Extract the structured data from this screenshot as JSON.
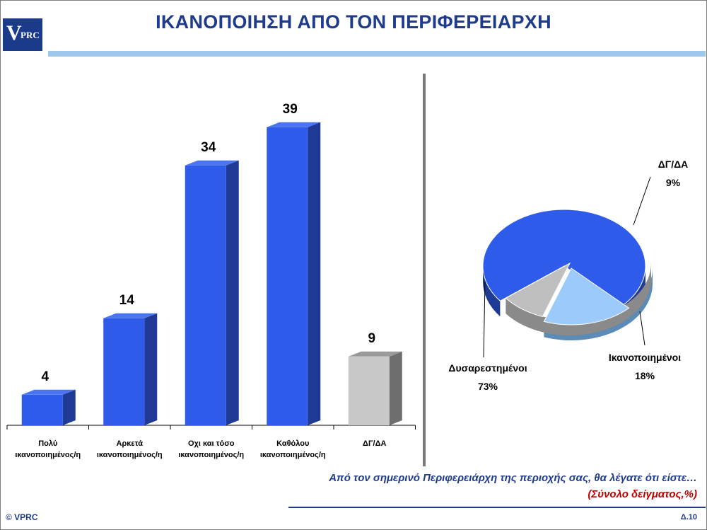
{
  "header": {
    "logo_text_v": "V",
    "logo_text_rest": "PRC",
    "title": "ΙΚΑΝΟΠΟΙΗΣΗ ΑΠΟ ΤΟΝ ΠΕΡΙΦΕΡΕΙΑΡΧΗ"
  },
  "colors": {
    "bar_blue": "#2f5bea",
    "bar_blue_side": "#1f3a94",
    "bar_blue_top": "#4a74f2",
    "bar_gray": "#c8c8c8",
    "bar_gray_side": "#6e6e6e",
    "pie_gray": "#bfbfbf",
    "pie_light_blue": "#9ccbfb",
    "title_blue": "#1f3b8c",
    "accent_red": "#c00000"
  },
  "chart_data": [
    {
      "type": "bar",
      "categories": [
        [
          "Πολύ",
          "ικανοποιημένος/η"
        ],
        [
          "Αρκετά",
          "ικανοποιημένος/η"
        ],
        [
          "Οχι και τόσο",
          "ικανοποιημένος/η"
        ],
        [
          "Καθόλου",
          "ικανοποιημένος/η"
        ],
        [
          "ΔΓ/ΔΑ"
        ]
      ],
      "values": [
        4,
        14,
        34,
        39,
        9
      ],
      "data_labels": [
        "4",
        "14",
        "34",
        "39",
        "9"
      ],
      "bar_colors": [
        "blue",
        "blue",
        "blue",
        "blue",
        "gray"
      ],
      "ylim": [
        0,
        40
      ],
      "grid": false,
      "legend": "none"
    },
    {
      "type": "pie",
      "slices": [
        {
          "label": "Δυσαρεστημένοι",
          "value": 73,
          "pct": "73%",
          "color": "blue"
        },
        {
          "label": "Ικανοποιημένοι",
          "value": 18,
          "pct": "18%",
          "color": "light_blue"
        },
        {
          "label": "ΔΓ/ΔΑ",
          "value": 9,
          "pct": "9%",
          "color": "gray"
        }
      ],
      "exploded": [
        "Ικανοποιημένοι",
        "ΔΓ/ΔΑ"
      ],
      "style": "3d"
    }
  ],
  "footer": {
    "question": "Από τον σημερινό Περιφερειάρχη της περιοχής σας, θα λέγατε ότι είστε…",
    "sample": "(Σύνολο δείγματος,%)",
    "copyright": "© VPRC",
    "page": "Δ.10"
  }
}
